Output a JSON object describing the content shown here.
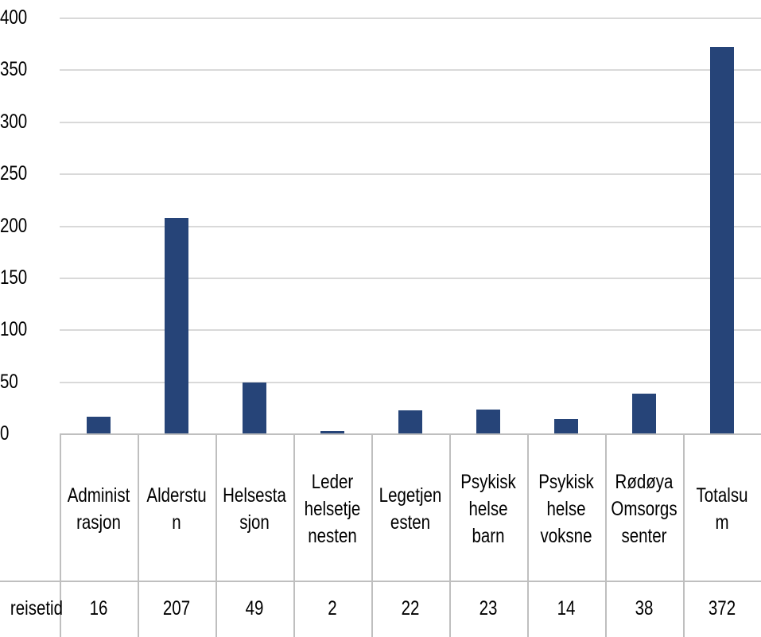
{
  "chart_data": {
    "type": "bar",
    "categories": [
      "Administ\nrasjon",
      "Alderstu\nn",
      "Helsesta\nsjon",
      "Leder\nhelsetje\nnesten",
      "Legetjen\nesten",
      "Psykisk\nhelse\nbarn",
      "Psykisk\nhelse\nvoksne",
      "Rødøya\nOmsorgs\nsenter",
      "Totalsu\nm"
    ],
    "series": [
      {
        "name": "reisetid",
        "color": "#264478",
        "values": [
          16,
          207,
          49,
          2,
          22,
          23,
          14,
          38,
          372
        ]
      }
    ],
    "ylim": [
      0,
      400
    ],
    "yticks": [
      0,
      50,
      100,
      150,
      200,
      250,
      300,
      350,
      400
    ],
    "grid": true
  }
}
